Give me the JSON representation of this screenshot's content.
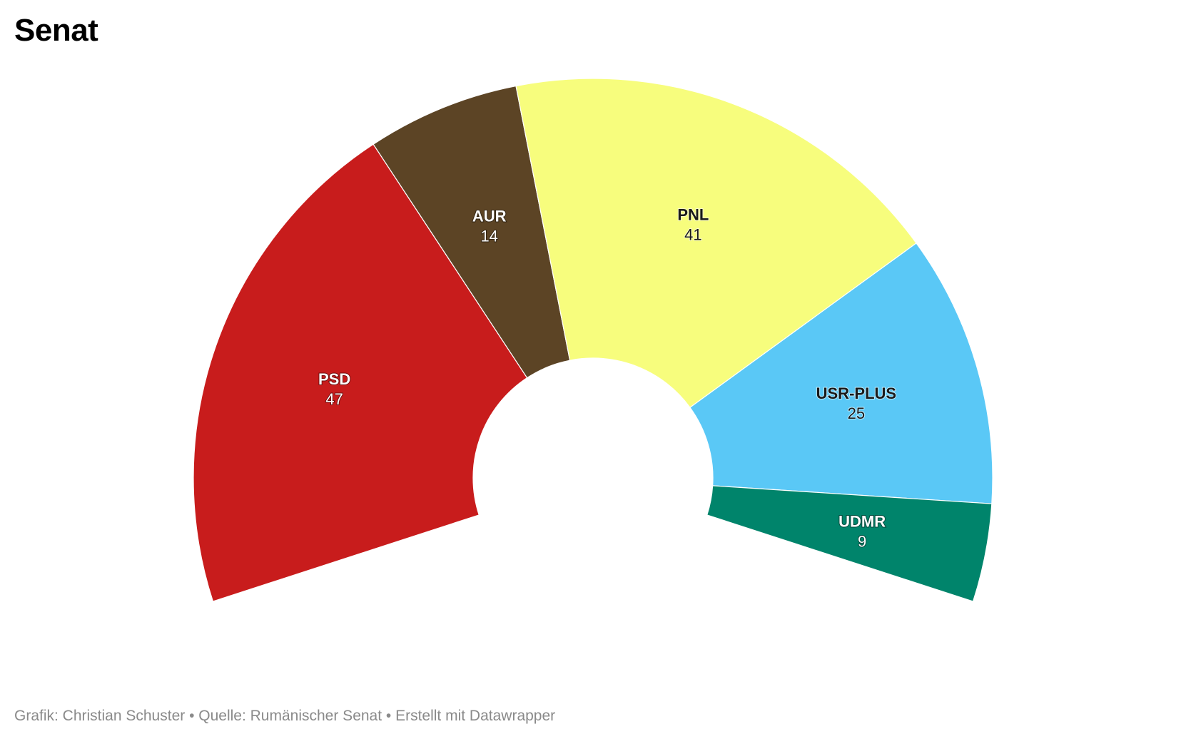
{
  "chart_data": {
    "type": "pie",
    "variant": "parliament-semicircle",
    "title": "Senat",
    "categories": [
      "PSD",
      "AUR",
      "PNL",
      "USR-PLUS",
      "UDMR"
    ],
    "values": [
      47,
      14,
      41,
      25,
      9
    ],
    "colors": [
      "#c81c1c",
      "#5c4425",
      "#f7fd7d",
      "#5ac8f6",
      "#00846b"
    ],
    "label_colors": [
      "#ffffff",
      "#ffffff",
      "#1a1a1a",
      "#1a1a1a",
      "#ffffff"
    ],
    "start_angle_deg": -108,
    "end_angle_deg": 108,
    "legend": "none"
  },
  "footer": {
    "text": "Grafik: Christian Schuster • Quelle: Rumänischer Senat • Erstellt mit Datawrapper"
  }
}
